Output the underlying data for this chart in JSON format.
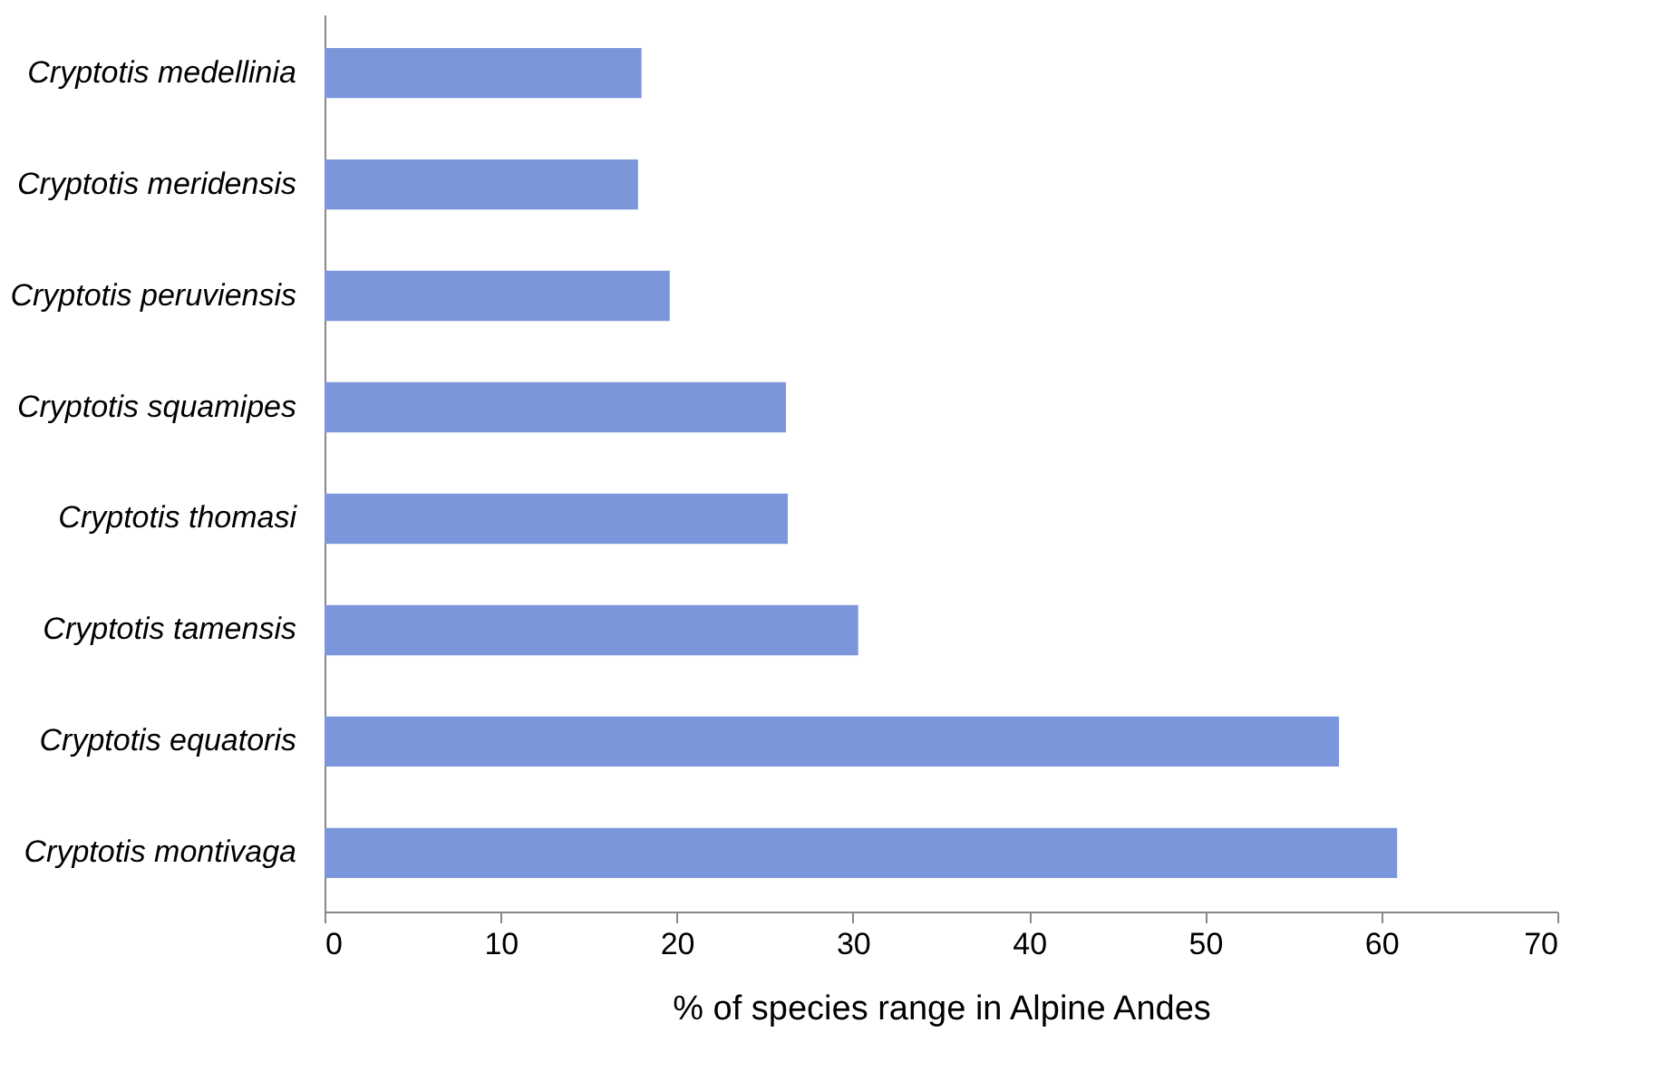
{
  "chart_data": {
    "type": "bar",
    "orientation": "horizontal",
    "xlabel": "% of species range in Alpine Andes",
    "categories": [
      "Cryptotis medellinia",
      "Cryptotis meridensis",
      "Cryptotis peruviensis",
      "Cryptotis squamipes",
      "Cryptotis thomasi",
      "Cryptotis tamensis",
      "Cryptotis equatoris",
      "Cryptotis montivaga"
    ],
    "values": [
      18.0,
      17.8,
      19.6,
      26.2,
      26.3,
      30.3,
      57.6,
      60.9
    ],
    "color": "#7b96da",
    "xlim": [
      0,
      70
    ],
    "xticks": [
      0,
      10,
      20,
      30,
      40,
      50,
      60,
      70
    ],
    "grid": false
  }
}
